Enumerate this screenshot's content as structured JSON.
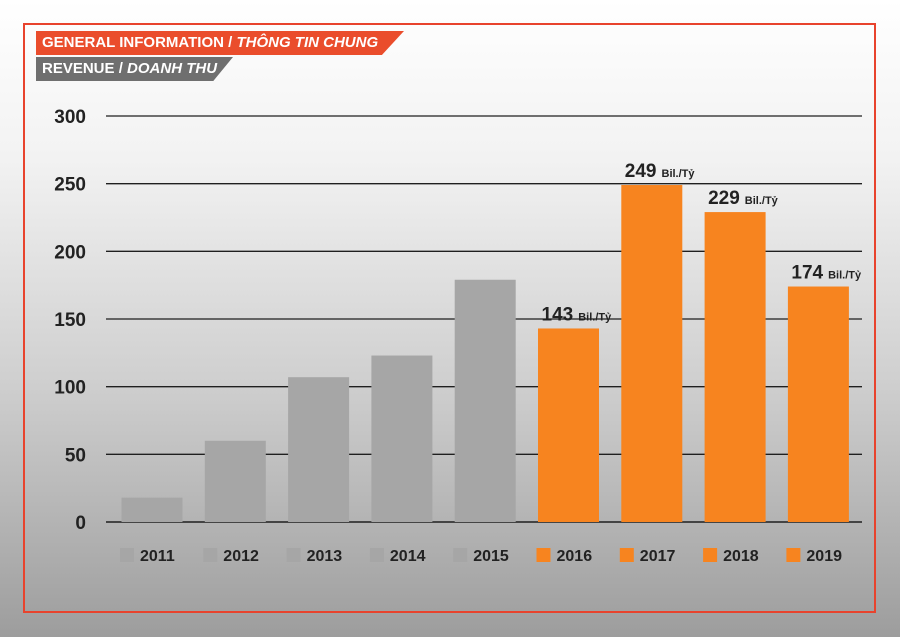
{
  "header": {
    "title_en": "GENERAL INFORMATION",
    "separator": " / ",
    "title_vi": "THÔNG TIN CHUNG",
    "subtitle_en": "REVENUE",
    "subtitle_vi": "DOANH THU"
  },
  "colors": {
    "frame": "#e8432d",
    "banner_primary": "#ea4d2c",
    "banner_secondary": "#6f6f6f",
    "bar_past": "#a6a6a6",
    "bar_recent": "#f7841f",
    "grid": "#1f1f1f"
  },
  "chart_data": {
    "type": "bar",
    "title": "REVENUE / DOANH THU",
    "xlabel": "",
    "ylabel": "",
    "ylim": [
      0,
      300
    ],
    "yticks": [
      0,
      50,
      100,
      150,
      200,
      250,
      300
    ],
    "grid": true,
    "legend_position": "bottom",
    "categories": [
      "2011",
      "2012",
      "2013",
      "2014",
      "2015",
      "2016",
      "2017",
      "2018",
      "2019"
    ],
    "values": [
      18,
      60,
      107,
      123,
      179,
      143,
      249,
      229,
      174
    ],
    "highlight": [
      false,
      false,
      false,
      false,
      false,
      true,
      true,
      true,
      true
    ],
    "data_labels": [
      {
        "index": 5,
        "value": "143",
        "unit": "Bil./Tỷ"
      },
      {
        "index": 6,
        "value": "249",
        "unit": "Bil./Tỷ"
      },
      {
        "index": 7,
        "value": "229",
        "unit": "Bil./Tỷ"
      },
      {
        "index": 8,
        "value": "174",
        "unit": "Bil./Tỷ"
      }
    ]
  }
}
